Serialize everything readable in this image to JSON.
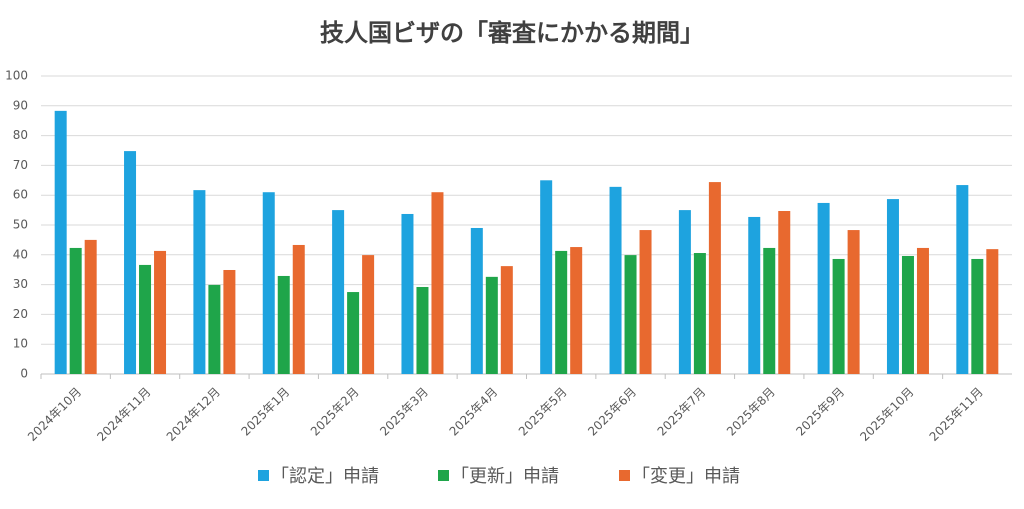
{
  "chart_data": {
    "type": "bar",
    "title": "技人国ビザの「審査にかかる期間」",
    "categories": [
      "2024年10月",
      "2024年11月",
      "2024年12月",
      "2025年1月",
      "2025年2月",
      "2025年3月",
      "2025年4月",
      "2025年5月",
      "2025年6月",
      "2025年7月",
      "2025年8月",
      "2025年9月",
      "2025年10月",
      "2025年11月"
    ],
    "series": [
      {
        "name": "「認定」申請",
        "color": "#1ea3df",
        "values": [
          88.3,
          74.8,
          61.7,
          61,
          55,
          53.7,
          49,
          65,
          62.8,
          55,
          52.7,
          57.4,
          58.7,
          63.4
        ]
      },
      {
        "name": "「更新」申請",
        "color": "#1fa54a",
        "values": [
          42.3,
          36.6,
          29.9,
          32.9,
          27.5,
          29.2,
          32.6,
          41.3,
          39.9,
          40.6,
          42.3,
          38.6,
          39.6,
          38.6
        ]
      },
      {
        "name": "「変更」申請",
        "color": "#e8692f",
        "values": [
          45,
          41.3,
          34.9,
          43.3,
          39.9,
          61,
          36.2,
          42.6,
          48.3,
          64.4,
          54.7,
          48.3,
          42.3,
          41.9
        ]
      }
    ],
    "ylim": [
      0,
      100
    ],
    "yticks": [
      0,
      10,
      20,
      30,
      40,
      50,
      60,
      70,
      80,
      90,
      100
    ],
    "grid": true,
    "legend": "bottom"
  }
}
